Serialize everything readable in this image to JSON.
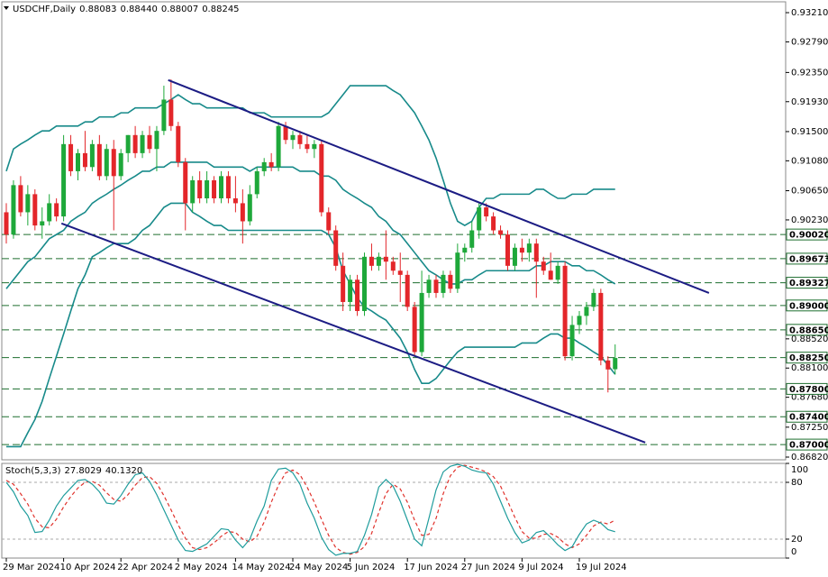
{
  "header": {
    "symbol": "USDCHF,Daily",
    "ohlc": [
      "0.88083",
      "0.88440",
      "0.88007",
      "0.88245"
    ]
  },
  "chart_data": [
    {
      "type": "candlestick",
      "categories": [
        "29 Mar 2024",
        null,
        null,
        null,
        null,
        null,
        null,
        null,
        "10 Apr 2024",
        null,
        null,
        null,
        null,
        null,
        null,
        null,
        "22 Apr 2024",
        null,
        null,
        null,
        null,
        null,
        null,
        null,
        "2 May 2024",
        null,
        null,
        null,
        null,
        null,
        null,
        null,
        "14 May 2024",
        null,
        null,
        null,
        null,
        null,
        null,
        null,
        "24 May 2024",
        null,
        null,
        null,
        null,
        null,
        null,
        null,
        "5 Jun 2024",
        null,
        null,
        null,
        null,
        null,
        null,
        null,
        "17 Jun 2024",
        null,
        null,
        null,
        null,
        null,
        null,
        null,
        "27 Jun 2024",
        null,
        null,
        null,
        null,
        null,
        null,
        null,
        "9 Jul 2024",
        null,
        null,
        null,
        null,
        null,
        null,
        null,
        "19 Jul 2024",
        null,
        null,
        null,
        null,
        null
      ],
      "open": [
        0.9034,
        0.9002,
        0.9073,
        0.9034,
        0.906,
        0.9015,
        0.9021,
        0.9047,
        0.9028,
        0.9132,
        0.9093,
        0.9119,
        0.9099,
        0.9132,
        0.9086,
        0.9125,
        0.9086,
        0.9119,
        0.9145,
        0.9119,
        0.9145,
        0.9125,
        0.9151,
        0.9196,
        0.9158,
        0.9106,
        0.9047,
        0.908,
        0.9054,
        0.908,
        0.9054,
        0.9086,
        0.9054,
        0.9047,
        0.9021,
        0.906,
        0.9093,
        0.9106,
        0.9099,
        0.9158,
        0.9138,
        0.9145,
        0.9132,
        0.9125,
        0.9132,
        0.9034,
        0.9008,
        0.8957,
        0.8905,
        0.8937,
        0.8892,
        0.897,
        0.8957,
        0.897,
        0.8963,
        0.895,
        0.8944,
        0.8898,
        0.8833,
        0.8918,
        0.8937,
        0.8918,
        0.8944,
        0.8924,
        0.8976,
        0.8983,
        0.9008,
        0.9041,
        0.9028,
        0.9008,
        0.9002,
        0.8957,
        0.8983,
        0.8976,
        0.8989,
        0.8963,
        0.895,
        0.8937,
        0.8957,
        0.8827,
        0.8872,
        0.8885,
        0.8898,
        0.8918,
        0.8821,
        0.88083
      ],
      "high": [
        0.9047,
        0.908,
        0.9086,
        0.9073,
        0.9067,
        0.9041,
        0.906,
        0.9054,
        0.9145,
        0.9145,
        0.9125,
        0.9151,
        0.9138,
        0.9145,
        0.9132,
        0.9138,
        0.9125,
        0.9145,
        0.9158,
        0.9151,
        0.9158,
        0.9158,
        0.9216,
        0.9225,
        0.9164,
        0.9112,
        0.9086,
        0.9093,
        0.9093,
        0.9086,
        0.9093,
        0.9093,
        0.9086,
        0.9067,
        0.9073,
        0.9099,
        0.9112,
        0.9119,
        0.9164,
        0.9164,
        0.9151,
        0.9151,
        0.9145,
        0.9138,
        0.9138,
        0.9041,
        0.9015,
        0.8976,
        0.8944,
        0.8944,
        0.8976,
        0.8989,
        0.8976,
        0.9008,
        0.897,
        0.8976,
        0.895,
        0.8905,
        0.895,
        0.8944,
        0.8944,
        0.895,
        0.895,
        0.8989,
        0.8989,
        0.9021,
        0.9047,
        0.9047,
        0.9034,
        0.9015,
        0.9008,
        0.8989,
        0.8996,
        0.8996,
        0.8996,
        0.897,
        0.8976,
        0.8963,
        0.8963,
        0.8885,
        0.8892,
        0.8905,
        0.8924,
        0.8924,
        0.8827,
        0.8844
      ],
      "low": [
        0.8989,
        0.8996,
        0.9028,
        0.9015,
        0.9008,
        0.8996,
        0.9015,
        0.9021,
        0.9021,
        0.9086,
        0.908,
        0.9093,
        0.9093,
        0.908,
        0.908,
        0.9008,
        0.908,
        0.9106,
        0.9112,
        0.9112,
        0.9119,
        0.9093,
        0.9145,
        0.9151,
        0.9099,
        0.9008,
        0.9034,
        0.9047,
        0.9047,
        0.9047,
        0.9047,
        0.9047,
        0.9034,
        0.8989,
        0.9015,
        0.9054,
        0.9086,
        0.9093,
        0.9093,
        0.9132,
        0.9125,
        0.9125,
        0.9119,
        0.9112,
        0.9028,
        0.9002,
        0.895,
        0.8892,
        0.8892,
        0.8885,
        0.8885,
        0.895,
        0.895,
        0.8937,
        0.8944,
        0.8905,
        0.8892,
        0.8827,
        0.8827,
        0.8911,
        0.8911,
        0.8911,
        0.8918,
        0.8918,
        0.8963,
        0.8976,
        0.8996,
        0.9021,
        0.9002,
        0.8996,
        0.895,
        0.895,
        0.8963,
        0.8963,
        0.8911,
        0.8944,
        0.8937,
        0.8931,
        0.8821,
        0.8821,
        0.8859,
        0.8872,
        0.8892,
        0.8814,
        0.8775,
        0.88007
      ],
      "close": [
        0.9002,
        0.9073,
        0.9034,
        0.906,
        0.9015,
        0.9021,
        0.9047,
        0.9028,
        0.9132,
        0.9093,
        0.9119,
        0.9099,
        0.9132,
        0.9086,
        0.9125,
        0.9086,
        0.9119,
        0.9145,
        0.9119,
        0.9145,
        0.9125,
        0.9151,
        0.9196,
        0.9158,
        0.9106,
        0.9047,
        0.908,
        0.9054,
        0.908,
        0.9054,
        0.9086,
        0.9054,
        0.9047,
        0.9021,
        0.906,
        0.9093,
        0.9106,
        0.9099,
        0.9158,
        0.9138,
        0.9145,
        0.9132,
        0.9125,
        0.9132,
        0.9034,
        0.9008,
        0.8957,
        0.8905,
        0.8937,
        0.8892,
        0.897,
        0.8957,
        0.897,
        0.8963,
        0.895,
        0.8944,
        0.8898,
        0.8833,
        0.8918,
        0.8937,
        0.8918,
        0.8944,
        0.8924,
        0.8976,
        0.8983,
        0.9008,
        0.9041,
        0.9028,
        0.9008,
        0.9002,
        0.8957,
        0.8983,
        0.8976,
        0.8989,
        0.8963,
        0.895,
        0.8937,
        0.8957,
        0.8827,
        0.8872,
        0.8885,
        0.8898,
        0.8918,
        0.8821,
        0.8808,
        0.88245
      ],
      "up_color": "#1ea83a",
      "down_color": "#e3262a",
      "bands": {
        "color": "#178a8a",
        "upper": [
          0.9093,
          0.9125,
          0.9132,
          0.9138,
          0.9145,
          0.9151,
          0.9151,
          0.9158,
          0.9158,
          0.9158,
          0.9158,
          0.9164,
          0.9164,
          0.9171,
          0.9171,
          0.9171,
          0.9177,
          0.9177,
          0.9184,
          0.9184,
          0.9184,
          0.9184,
          0.919,
          0.9196,
          0.9203,
          0.9196,
          0.919,
          0.919,
          0.9184,
          0.9184,
          0.9184,
          0.9184,
          0.9184,
          0.9184,
          0.9177,
          0.9177,
          0.9177,
          0.9171,
          0.9171,
          0.9171,
          0.9171,
          0.9171,
          0.9171,
          0.9171,
          0.9171,
          0.9177,
          0.919,
          0.9203,
          0.9216,
          0.9216,
          0.9216,
          0.9216,
          0.9216,
          0.9216,
          0.9209,
          0.9203,
          0.919,
          0.9177,
          0.9158,
          0.9138,
          0.9112,
          0.908,
          0.9047,
          0.9021,
          0.9015,
          0.9021,
          0.9041,
          0.9054,
          0.9054,
          0.906,
          0.906,
          0.906,
          0.906,
          0.906,
          0.9067,
          0.9067,
          0.906,
          0.9054,
          0.9054,
          0.906,
          0.906,
          0.906,
          0.9067,
          0.9067,
          0.9067,
          0.9067
        ],
        "middle": [
          0.8924,
          0.8937,
          0.895,
          0.8963,
          0.897,
          0.8983,
          0.8996,
          0.9002,
          0.9008,
          0.9021,
          0.9028,
          0.9034,
          0.9047,
          0.9054,
          0.906,
          0.9067,
          0.9073,
          0.908,
          0.9086,
          0.9093,
          0.9093,
          0.9099,
          0.9099,
          0.9106,
          0.9106,
          0.9106,
          0.9106,
          0.9106,
          0.9106,
          0.9099,
          0.9099,
          0.9099,
          0.9099,
          0.9099,
          0.9093,
          0.9099,
          0.9099,
          0.9099,
          0.9099,
          0.9099,
          0.9099,
          0.9093,
          0.9093,
          0.9093,
          0.9086,
          0.9086,
          0.908,
          0.9067,
          0.906,
          0.9054,
          0.9047,
          0.9041,
          0.9028,
          0.9021,
          0.9008,
          0.9002,
          0.8989,
          0.8976,
          0.8963,
          0.895,
          0.8944,
          0.8937,
          0.8931,
          0.8931,
          0.8937,
          0.8937,
          0.8944,
          0.895,
          0.895,
          0.895,
          0.895,
          0.895,
          0.895,
          0.895,
          0.8957,
          0.8957,
          0.8963,
          0.8963,
          0.8963,
          0.8957,
          0.8957,
          0.895,
          0.895,
          0.8944,
          0.8937,
          0.8931
        ],
        "lower": [
          0.8697,
          0.8697,
          0.8697,
          0.8717,
          0.8736,
          0.8762,
          0.8795,
          0.8827,
          0.8859,
          0.8892,
          0.8924,
          0.8944,
          0.897,
          0.8976,
          0.8983,
          0.8989,
          0.8989,
          0.8989,
          0.8996,
          0.9008,
          0.9015,
          0.9028,
          0.9041,
          0.9047,
          0.9047,
          0.9047,
          0.9034,
          0.9028,
          0.9021,
          0.9015,
          0.9015,
          0.9008,
          0.9008,
          0.9008,
          0.9008,
          0.9008,
          0.9008,
          0.9008,
          0.9008,
          0.9008,
          0.9008,
          0.9008,
          0.9008,
          0.9008,
          0.9008,
          0.9002,
          0.8983,
          0.895,
          0.8931,
          0.8911,
          0.8898,
          0.8892,
          0.8885,
          0.8879,
          0.8866,
          0.8853,
          0.8833,
          0.8808,
          0.8788,
          0.8788,
          0.8795,
          0.8808,
          0.8821,
          0.8833,
          0.884,
          0.884,
          0.884,
          0.884,
          0.884,
          0.884,
          0.884,
          0.884,
          0.8846,
          0.8846,
          0.8846,
          0.8853,
          0.8859,
          0.8859,
          0.8853,
          0.8853,
          0.8846,
          0.884,
          0.8833,
          0.8827,
          0.8814,
          0.8801
        ]
      },
      "levels": {
        "color": "#1d6e2e",
        "values": [
          {
            "value": 0.9002,
            "label": "0.90020"
          },
          {
            "value": 0.89673,
            "label": "0.89673"
          },
          {
            "value": 0.89327,
            "label": "0.89327"
          },
          {
            "value": 0.89,
            "label": "0.89000"
          },
          {
            "value": 0.8865,
            "label": "0.88650"
          },
          {
            "value": 0.8825,
            "label": "0.88250"
          },
          {
            "value": 0.878,
            "label": "0.87800"
          },
          {
            "value": 0.874,
            "label": "0.87400"
          },
          {
            "value": 0.87,
            "label": "0.87000"
          }
        ]
      },
      "trendlines": {
        "color": "#1c1c84",
        "lines": [
          {
            "x": [
              22.6,
              98.1
            ],
            "y": [
              0.9224,
              0.8918
            ]
          },
          {
            "x": [
              7.7,
              89.2
            ],
            "y": [
              0.9018,
              0.8703
            ]
          }
        ]
      },
      "ylim": [
        0.86781,
        0.93366
      ],
      "yticks": [
        {
          "value": 0.9321,
          "label": "0.93210"
        },
        {
          "value": 0.9279,
          "label": "0.92790"
        },
        {
          "value": 0.9235,
          "label": "0.92350"
        },
        {
          "value": 0.9193,
          "label": "0.91930"
        },
        {
          "value": 0.915,
          "label": "0.91500"
        },
        {
          "value": 0.9108,
          "label": "0.91080"
        },
        {
          "value": 0.9065,
          "label": "0.90650"
        },
        {
          "value": 0.9023,
          "label": "0.90230"
        },
        {
          "value": 0.8852,
          "label": "0.88520"
        },
        {
          "value": 0.881,
          "label": "0.88100"
        },
        {
          "value": 0.8768,
          "label": "0.87680"
        },
        {
          "value": 0.8725,
          "label": "0.87250"
        },
        {
          "value": 0.8682,
          "label": "0.86820"
        }
      ]
    },
    {
      "type": "stochastic",
      "title": "Stoch(5,3,3)",
      "value_labels": [
        "27.8029",
        "40.1320"
      ],
      "k": {
        "color": "#1e9c9c",
        "values": [
          80,
          70,
          55,
          45,
          27,
          28,
          40,
          55,
          66,
          74,
          82,
          83,
          78,
          70,
          58,
          57,
          66,
          78,
          88,
          90,
          81,
          67,
          51,
          35,
          19,
          8,
          7,
          11,
          15,
          23,
          31,
          30,
          19,
          11,
          20,
          39,
          55,
          82,
          94,
          95,
          90,
          78,
          58,
          42,
          22,
          9,
          3,
          5,
          5,
          7,
          24,
          46,
          75,
          83,
          76,
          60,
          40,
          20,
          13,
          42,
          72,
          91,
          97,
          99,
          97,
          93,
          91,
          90,
          78,
          60,
          42,
          27,
          16,
          19,
          27,
          29,
          22,
          14,
          8,
          12,
          25,
          36,
          40,
          37,
          30,
          27.8029
        ]
      },
      "d": {
        "color": "#e0322c",
        "values": [
          82,
          78,
          68,
          57,
          42,
          33,
          32,
          41,
          54,
          65,
          74,
          80,
          81,
          77,
          69,
          62,
          60,
          67,
          77,
          85,
          86,
          79,
          66,
          51,
          35,
          21,
          11,
          9,
          11,
          16,
          23,
          28,
          27,
          20,
          17,
          23,
          38,
          59,
          77,
          90,
          93,
          88,
          75,
          59,
          41,
          24,
          11,
          6,
          4,
          6,
          12,
          26,
          48,
          68,
          78,
          73,
          59,
          40,
          24,
          25,
          42,
          68,
          87,
          96,
          98,
          96,
          94,
          91,
          86,
          76,
          60,
          43,
          28,
          21,
          21,
          25,
          26,
          22,
          15,
          11,
          15,
          24,
          34,
          38,
          36,
          40.132
        ]
      },
      "ylim": [
        0,
        100
      ],
      "yticks": [
        0,
        20,
        80,
        100
      ],
      "levels": [
        20,
        80
      ]
    }
  ]
}
